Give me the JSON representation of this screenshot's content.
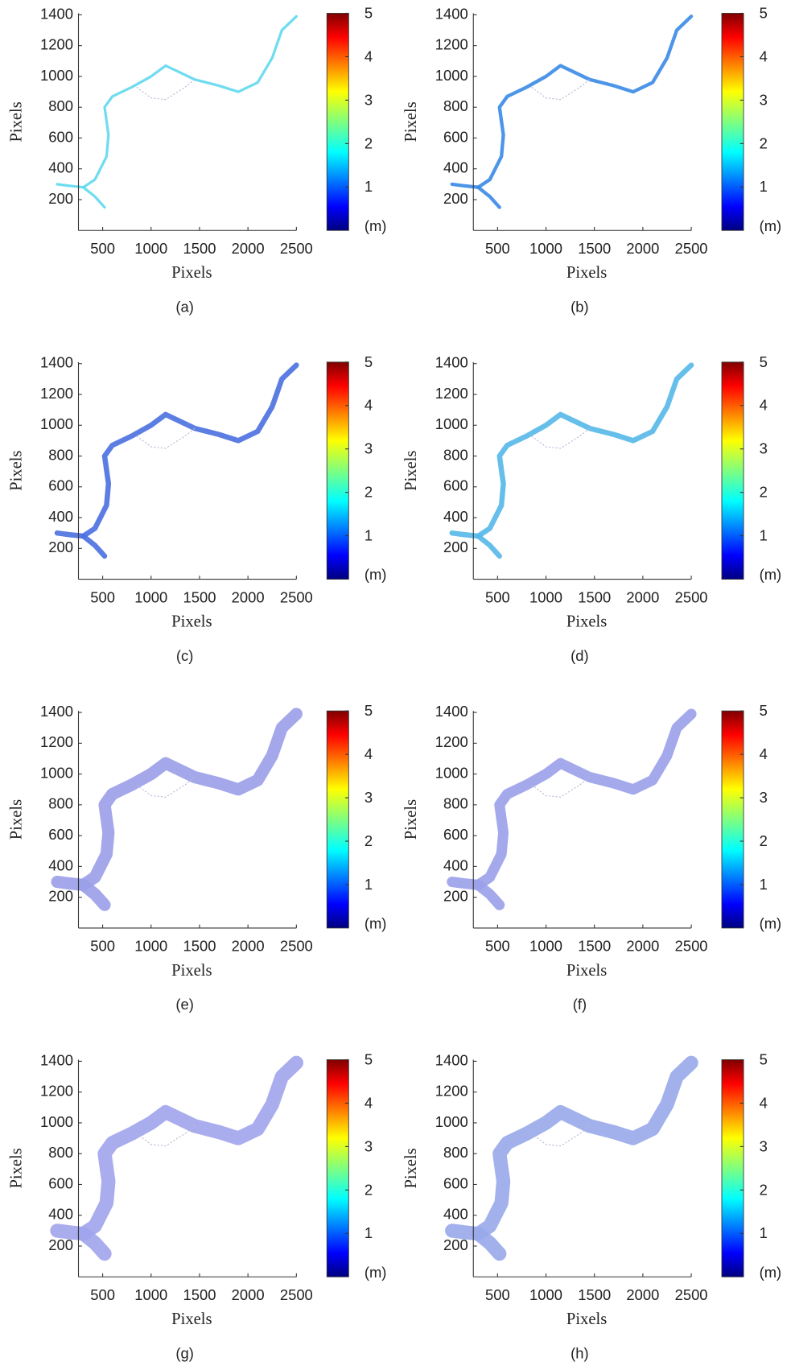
{
  "chart_data": [
    {
      "type": "heatmap",
      "caption": "(a)",
      "xlabel": "Pixels",
      "ylabel": "Pixels",
      "xlim": [
        250,
        2500
      ],
      "xticks": [
        500,
        1000,
        1500,
        2000,
        2500
      ],
      "ylim": [
        0,
        1410
      ],
      "yticks": [
        200,
        400,
        600,
        800,
        1000,
        1200,
        1400
      ],
      "colorbar": {
        "lim": [
          0,
          5
        ],
        "ticks": [
          1,
          2,
          3,
          4,
          5
        ],
        "label": "(m)",
        "colormap": "jet"
      }
    },
    {
      "type": "heatmap",
      "caption": "(b)",
      "xlabel": "Pixels",
      "ylabel": "Pixels",
      "xlim": [
        250,
        2500
      ],
      "xticks": [
        500,
        1000,
        1500,
        2000,
        2500
      ],
      "ylim": [
        0,
        1410
      ],
      "yticks": [
        200,
        400,
        600,
        800,
        1000,
        1200,
        1400
      ],
      "colorbar": {
        "lim": [
          0,
          5
        ],
        "ticks": [
          1,
          2,
          3,
          4,
          5
        ],
        "label": "(m)",
        "colormap": "jet"
      }
    },
    {
      "type": "heatmap",
      "caption": "(c)",
      "xlabel": "Pixels",
      "ylabel": "Pixels",
      "xlim": [
        250,
        2500
      ],
      "xticks": [
        500,
        1000,
        1500,
        2000,
        2500
      ],
      "ylim": [
        0,
        1410
      ],
      "yticks": [
        200,
        400,
        600,
        800,
        1000,
        1200,
        1400
      ],
      "colorbar": {
        "lim": [
          0,
          5
        ],
        "ticks": [
          1,
          2,
          3,
          4,
          5
        ],
        "label": "(m)",
        "colormap": "jet"
      }
    },
    {
      "type": "heatmap",
      "caption": "(d)",
      "xlabel": "Pixels",
      "ylabel": "Pixels",
      "xlim": [
        250,
        2500
      ],
      "xticks": [
        500,
        1000,
        1500,
        2000,
        2500
      ],
      "ylim": [
        0,
        1410
      ],
      "yticks": [
        200,
        400,
        600,
        800,
        1000,
        1200,
        1400
      ],
      "colorbar": {
        "lim": [
          0,
          5
        ],
        "ticks": [
          1,
          2,
          3,
          4,
          5
        ],
        "label": "(m)",
        "colormap": "jet"
      }
    },
    {
      "type": "heatmap",
      "caption": "(e)",
      "xlabel": "Pixels",
      "ylabel": "Pixels",
      "xlim": [
        250,
        2500
      ],
      "xticks": [
        500,
        1000,
        1500,
        2000,
        2500
      ],
      "ylim": [
        0,
        1410
      ],
      "yticks": [
        200,
        400,
        600,
        800,
        1000,
        1200,
        1400
      ],
      "colorbar": {
        "lim": [
          0,
          5
        ],
        "ticks": [
          1,
          2,
          3,
          4,
          5
        ],
        "label": "(m)",
        "colormap": "jet"
      }
    },
    {
      "type": "heatmap",
      "caption": "(f)",
      "xlabel": "Pixels",
      "ylabel": "Pixels",
      "xlim": [
        250,
        2500
      ],
      "xticks": [
        500,
        1000,
        1500,
        2000,
        2500
      ],
      "ylim": [
        0,
        1410
      ],
      "yticks": [
        200,
        400,
        600,
        800,
        1000,
        1200,
        1400
      ],
      "colorbar": {
        "lim": [
          0,
          5
        ],
        "ticks": [
          1,
          2,
          3,
          4,
          5
        ],
        "label": "(m)",
        "colormap": "jet"
      }
    },
    {
      "type": "heatmap",
      "caption": "(g)",
      "xlabel": "Pixels",
      "ylabel": "Pixels",
      "xlim": [
        250,
        2500
      ],
      "xticks": [
        500,
        1000,
        1500,
        2000,
        2500
      ],
      "ylim": [
        0,
        1410
      ],
      "yticks": [
        200,
        400,
        600,
        800,
        1000,
        1200,
        1400
      ],
      "colorbar": {
        "lim": [
          0,
          5
        ],
        "ticks": [
          1,
          2,
          3,
          4,
          5
        ],
        "label": "(m)",
        "colormap": "jet"
      }
    },
    {
      "type": "heatmap",
      "caption": "(h)",
      "xlabel": "Pixels",
      "ylabel": "Pixels",
      "xlim": [
        250,
        2500
      ],
      "xticks": [
        500,
        1000,
        1500,
        2000,
        2500
      ],
      "ylim": [
        0,
        1410
      ],
      "yticks": [
        200,
        400,
        600,
        800,
        1000,
        1200,
        1400
      ],
      "colorbar": {
        "lim": [
          0,
          5
        ],
        "ticks": [
          1,
          2,
          3,
          4,
          5
        ],
        "label": "(m)",
        "colormap": "jet"
      }
    }
  ]
}
